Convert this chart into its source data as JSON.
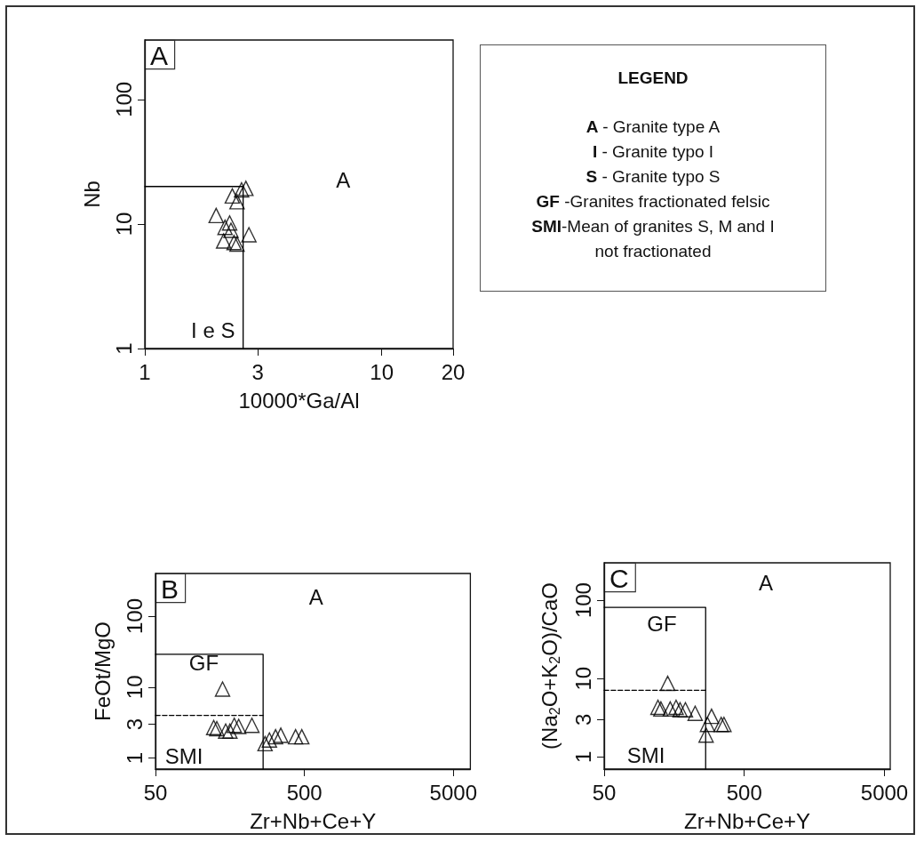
{
  "chart_data": [
    {
      "type": "scatter",
      "xlabel": "10000*Ga/Al",
      "ylabel": "Nb",
      "log": "xy",
      "xlim": [
        1,
        20
      ],
      "xticks": [
        1,
        3,
        10,
        20
      ],
      "ylim": [
        1,
        300
      ],
      "yticks": [
        1,
        10,
        100
      ],
      "annotations": [
        "A",
        "A",
        "I e S"
      ],
      "series": [
        {
          "type": "scatter",
          "marker": "triangle",
          "color": "#000000",
          "x": [
            2.67,
            2.56,
            2.34,
            2.45,
            2.0,
            2.28,
            2.18,
            2.31,
            2.75,
            2.15,
            2.38,
            2.45
          ],
          "values": [
            19.3,
            18.8,
            16.8,
            15.1,
            11.7,
            10.2,
            9.4,
            8.9,
            8.2,
            7.3,
            7.1,
            6.9
          ]
        },
        {
          "type": "line",
          "marker": "none",
          "line_style": "solid",
          "color": "#000000",
          "x": [
            1,
            2.6,
            2.6
          ],
          "values": [
            20,
            20,
            1
          ]
        }
      ]
    },
    {
      "type": "other",
      "title": "LEGEND",
      "annotations": [
        "A - Granite type A",
        "I -  Granite typo I",
        "S  - Granite typo S",
        "GF -Granites fractionated felsic",
        "SMI-Mean of granites S, M and I",
        "not fractionated"
      ]
    },
    {
      "type": "scatter",
      "xlabel": "Zr+Nb+Ce+Y",
      "ylabel": "FeOt/MgO",
      "log": "xy",
      "xlim": [
        50,
        6500
      ],
      "xticks": [
        50,
        500,
        5000
      ],
      "ylim": [
        0.7,
        400
      ],
      "yticks": [
        1,
        3,
        10,
        100
      ],
      "annotations": [
        "B",
        "A",
        "GF",
        "SMI"
      ],
      "series": [
        {
          "type": "scatter",
          "marker": "triangle",
          "color": "#000000",
          "x": [
            141,
            123,
            129,
            169,
            181,
            222,
            148,
            158,
            272,
            291,
            320,
            347,
            436,
            480
          ],
          "values": [
            9.4,
            2.7,
            2.6,
            2.9,
            2.8,
            2.9,
            2.4,
            2.4,
            1.6,
            1.8,
            2.0,
            2.1,
            2.0,
            2.0
          ]
        },
        {
          "type": "line",
          "marker": "none",
          "line_style": "solid",
          "color": "#000000",
          "x": [
            50,
            264,
            264
          ],
          "values": [
            29,
            29,
            0.7
          ]
        },
        {
          "type": "line",
          "marker": "none",
          "line_style": "dashed",
          "color": "#000000",
          "x": [
            50,
            264
          ],
          "values": [
            4,
            4
          ]
        }
      ]
    },
    {
      "type": "scatter",
      "xlabel": "Zr+Nb+Ce+Y",
      "ylabel": "(Na$_{2}$O+K$_{2}$O)/CaO",
      "log": "xy",
      "xlim": [
        50,
        5500
      ],
      "xticks": [
        50,
        500,
        5000
      ],
      "ylim": [
        0.7,
        300
      ],
      "yticks": [
        1,
        3,
        10,
        100
      ],
      "annotations": [
        "C",
        "A",
        "GF",
        "SMI"
      ],
      "series": [
        {
          "type": "scatter",
          "marker": "triangle",
          "color": "#000000",
          "x": [
            142,
            121,
            127,
            148,
            163,
            174,
            190,
            223,
            292,
            273,
            342,
            358,
            267
          ],
          "values": [
            8.7,
            4.3,
            4.1,
            4.1,
            4.3,
            4.0,
            4.0,
            3.6,
            3.3,
            2.6,
            2.6,
            2.6,
            1.9
          ]
        },
        {
          "type": "line",
          "marker": "none",
          "line_style": "solid",
          "color": "#000000",
          "x": [
            50,
            265,
            265
          ],
          "values": [
            81,
            81,
            0.7
          ]
        },
        {
          "type": "line",
          "marker": "none",
          "line_style": "dashed",
          "color": "#000000",
          "x": [
            50,
            265
          ],
          "values": [
            7.1,
            7.1
          ]
        }
      ]
    }
  ]
}
